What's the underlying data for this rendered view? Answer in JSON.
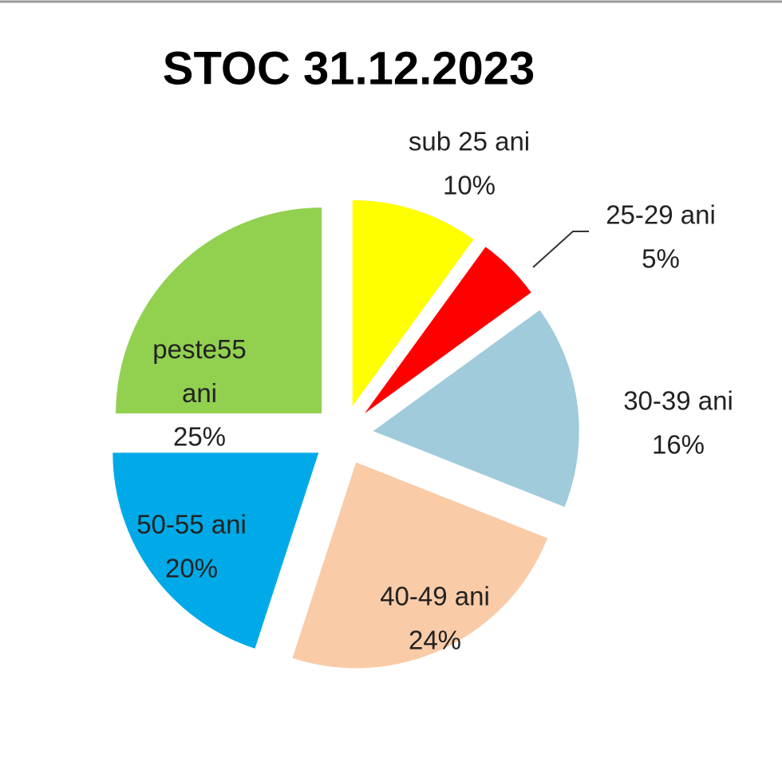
{
  "chart_data": {
    "type": "pie",
    "title": "STOC 31.12.2023",
    "categories": [
      "sub 25 ani",
      "25-29 ani",
      "30-39 ani",
      "40-49 ani",
      "50-55 ani",
      "peste55 ani"
    ],
    "values": [
      10,
      5,
      16,
      24,
      20,
      25
    ],
    "value_labels": [
      "10%",
      "5%",
      "16%",
      "24%",
      "20%",
      "25%"
    ],
    "colors": [
      "#ffff00",
      "#ff0000",
      "#9fcbdb",
      "#f9cba7",
      "#00aae8",
      "#92d050"
    ]
  }
}
